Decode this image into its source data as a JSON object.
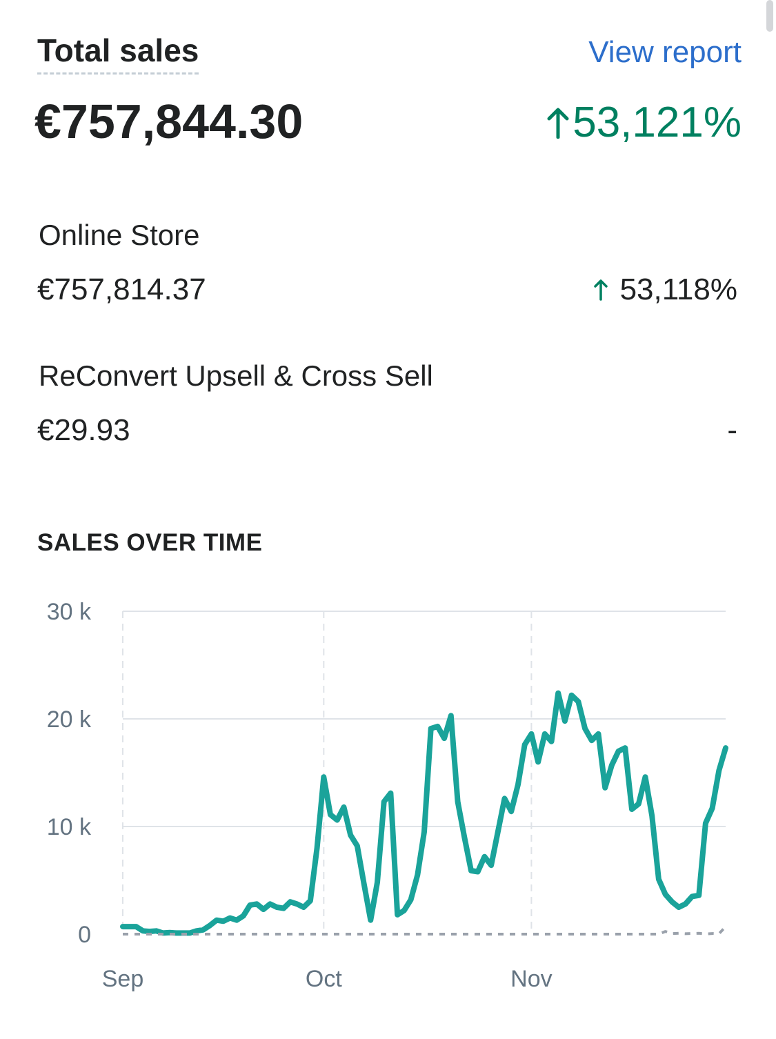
{
  "header": {
    "title": "Total sales",
    "view_report": "View report"
  },
  "total": {
    "value": "€757,844.30",
    "change": "53,121%",
    "change_direction": "up"
  },
  "channels": [
    {
      "name": "Online Store",
      "value": "€757,814.37",
      "change": "53,118%",
      "change_direction": "up"
    },
    {
      "name": "ReConvert Upsell & Cross Sell",
      "value": "€29.93",
      "change": "-",
      "change_direction": "none"
    }
  ],
  "colors": {
    "accent_line": "#1aa39a",
    "positive": "#008060",
    "link": "#2c6ecb",
    "comparison_line": "#9aa1ab"
  },
  "icons": {
    "change_arrow": "arrow-up-icon"
  },
  "chart_heading": "SALES OVER TIME",
  "chart_data": {
    "type": "line",
    "ylim": [
      0,
      30000
    ],
    "y_ticks": [
      0,
      10000,
      20000,
      30000
    ],
    "y_tick_labels": [
      "0",
      "10 k",
      "20 k",
      "30 k"
    ],
    "x_tick_labels": [
      "Sep",
      "Oct",
      "Nov"
    ],
    "x_tick_positions": [
      1,
      31,
      62
    ],
    "grid": true,
    "series": [
      {
        "style": "solid",
        "color": "#1aa39a",
        "x": [
          1,
          2,
          3,
          4,
          5,
          6,
          7,
          8,
          9,
          10,
          11,
          12,
          13,
          14,
          15,
          16,
          17,
          18,
          19,
          20,
          21,
          22,
          23,
          24,
          25,
          26,
          27,
          28,
          29,
          30,
          31,
          32,
          33,
          34,
          35,
          36,
          37,
          38,
          39,
          40,
          41,
          42,
          43,
          44,
          45,
          46,
          47,
          48,
          49,
          50,
          51,
          52,
          53,
          54,
          55,
          56,
          57,
          58,
          59,
          60,
          61,
          62,
          63,
          64,
          65,
          66,
          67,
          68,
          69,
          70,
          71,
          72,
          73,
          74,
          75,
          76,
          77,
          78,
          79,
          80,
          81,
          82,
          83,
          84,
          85,
          86,
          87,
          88,
          89,
          90,
          91
        ],
        "values": [
          700,
          700,
          700,
          300,
          250,
          300,
          100,
          150,
          100,
          100,
          100,
          300,
          400,
          800,
          1300,
          1200,
          1500,
          1300,
          1700,
          2700,
          2800,
          2300,
          2800,
          2500,
          2400,
          3000,
          2800,
          2500,
          3100,
          8000,
          14600,
          11100,
          10600,
          11800,
          9200,
          8200,
          4700,
          1300,
          4800,
          12300,
          13100,
          1800,
          2200,
          3200,
          5500,
          9500,
          19100,
          19300,
          18200,
          20300,
          12300,
          9000,
          5900,
          5800,
          7200,
          6400,
          9500,
          12600,
          11400,
          13900,
          17600,
          18600,
          16000,
          18600,
          17900,
          22400,
          19800,
          22200,
          21600,
          19100,
          18000,
          18600,
          13600,
          15700,
          17000,
          17300,
          11600,
          12100,
          14600,
          11000,
          5100,
          3700,
          3000,
          2500,
          2800,
          3500,
          3600,
          10300,
          11700,
          15200,
          17300
        ]
      },
      {
        "style": "dashed",
        "color": "#9aa1ab",
        "x": [
          1,
          10,
          20,
          30,
          40,
          50,
          60,
          70,
          80,
          81,
          82,
          83,
          84,
          85,
          86,
          87,
          88,
          89,
          90,
          91
        ],
        "values": [
          0,
          0,
          0,
          0,
          0,
          0,
          0,
          0,
          0,
          0,
          250,
          50,
          80,
          40,
          60,
          80,
          20,
          60,
          30,
          700
        ]
      }
    ]
  }
}
